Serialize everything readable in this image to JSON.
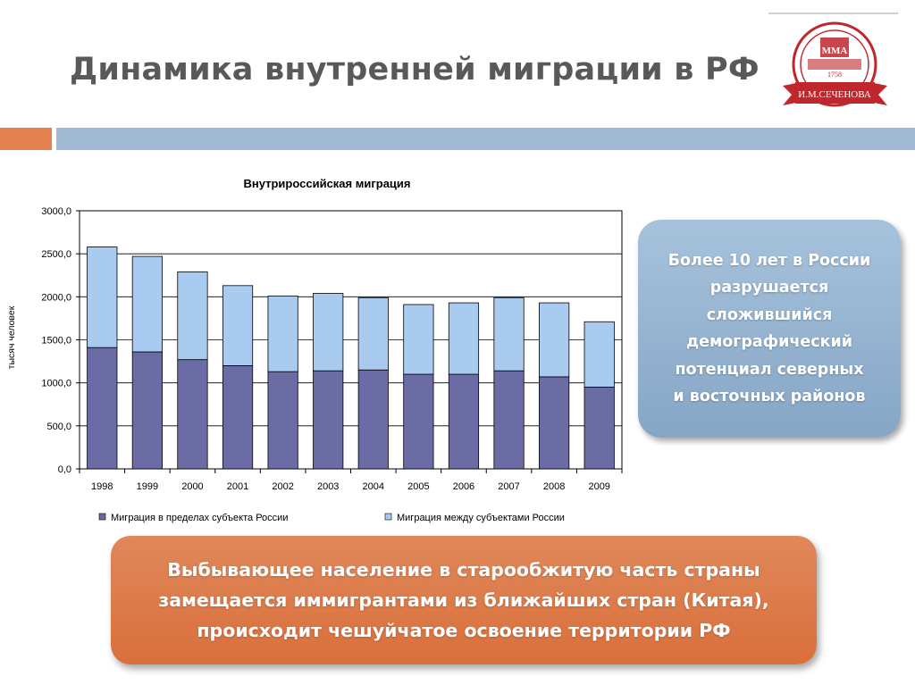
{
  "slide": {
    "title": "Динамика внутренней миграции в РФ",
    "accent_color": "#e4824f",
    "band_color": "#9fbad2"
  },
  "logo": {
    "icon": "university-seal-icon",
    "monogram": "ММА",
    "year": "1758",
    "ribbon_text": "И.М.СЕЧЕНОВА",
    "color": "#c0272d"
  },
  "chart_data": {
    "type": "bar",
    "stacked": true,
    "title": "Внутрироссийская миграция",
    "ylabel": "тысяч человек",
    "xlabel": "",
    "categories": [
      "1998",
      "1999",
      "2000",
      "2001",
      "2002",
      "2003",
      "2004",
      "2005",
      "2006",
      "2007",
      "2008",
      "2009"
    ],
    "series": [
      {
        "name": "Миграция в пределах субъекта России",
        "color": "#6b6ba6",
        "values": [
          1410,
          1360,
          1270,
          1200,
          1130,
          1140,
          1150,
          1100,
          1100,
          1140,
          1070,
          950
        ]
      },
      {
        "name": "Миграция между субъектами России",
        "color": "#a9cbf0",
        "values": [
          1170,
          1110,
          1020,
          930,
          880,
          900,
          840,
          810,
          830,
          850,
          860,
          760
        ]
      }
    ],
    "ylim": [
      0,
      3000
    ],
    "yticks": [
      0,
      500,
      1000,
      1500,
      2000,
      2500,
      3000
    ],
    "ytick_labels": [
      "0,0",
      "500,0",
      "1000,0",
      "1500,0",
      "2000,0",
      "2500,0",
      "3000,0"
    ],
    "grid": true,
    "legend_position": "bottom"
  },
  "info_box": {
    "text": "Более 10 лет в России\nразрушается\nсложившийся\nдемографический\nпотенциал северных\nи восточных районов",
    "color": "#97b4d1"
  },
  "note_box": {
    "text": "Выбывающее население в старообжитую часть страны\nзамещается иммигрантами из ближайших стран (Китая),\nпроисходит чешуйчатое  освоение территории РФ",
    "color": "#dd7a47"
  }
}
